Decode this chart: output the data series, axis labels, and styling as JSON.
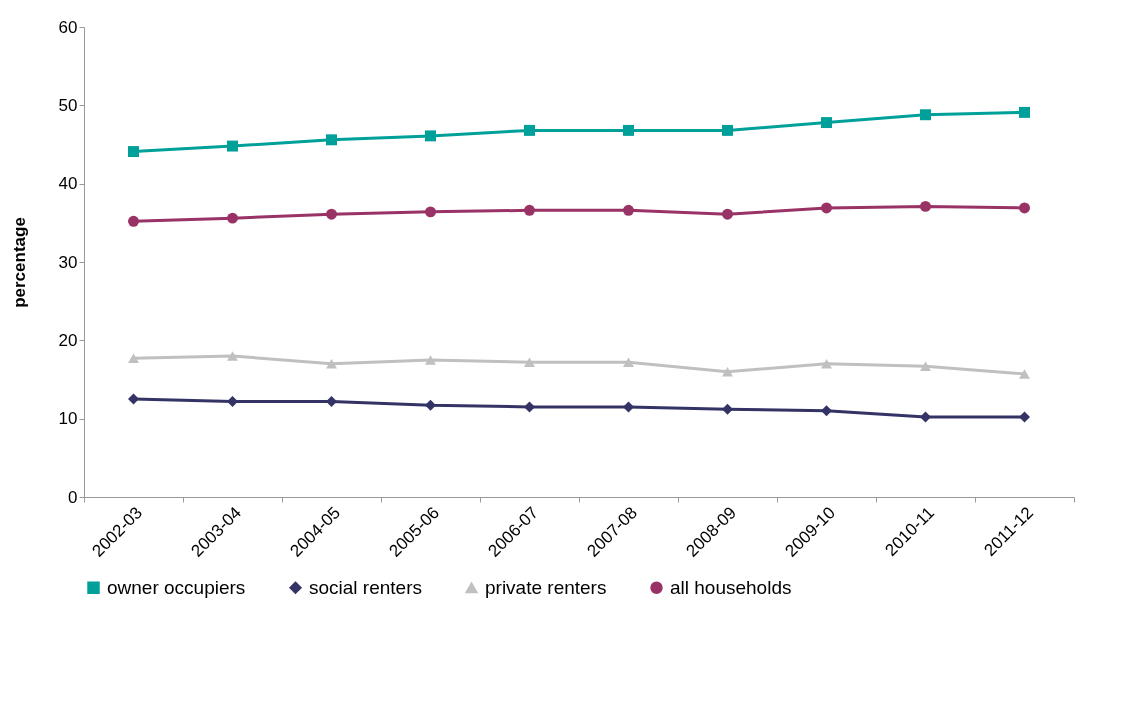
{
  "chart_data": {
    "type": "line",
    "ylabel": "percentage",
    "categories": [
      "2002-03",
      "2003-04",
      "2004-05",
      "2005-06",
      "2006-07",
      "2007-08",
      "2008-09",
      "2009-10",
      "2010-11",
      "2011-12"
    ],
    "series": [
      {
        "name": "owner occupiers",
        "color": "#00a09a",
        "marker": "square",
        "values": [
          44.1,
          44.8,
          45.6,
          46.1,
          46.8,
          46.8,
          46.8,
          47.8,
          48.8,
          49.1
        ]
      },
      {
        "name": "social renters",
        "color": "#333366",
        "marker": "diamond",
        "values": [
          12.5,
          12.2,
          12.2,
          11.7,
          11.5,
          11.5,
          11.2,
          11.0,
          10.2,
          10.2
        ]
      },
      {
        "name": "private renters",
        "color": "#c0c0c0",
        "marker": "triangle",
        "values": [
          17.7,
          18.0,
          17.0,
          17.5,
          17.2,
          17.2,
          16.0,
          17.0,
          16.7,
          15.7
        ]
      },
      {
        "name": "all households",
        "color": "#993366",
        "marker": "circle",
        "values": [
          35.2,
          35.6,
          36.1,
          36.4,
          36.6,
          36.6,
          36.1,
          36.9,
          37.1,
          36.9
        ]
      }
    ],
    "ylim": [
      0,
      60
    ],
    "yticks": [
      0,
      10,
      20,
      30,
      40,
      50,
      60
    ],
    "grid": false,
    "legend": "bottom"
  }
}
